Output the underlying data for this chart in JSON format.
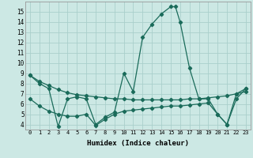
{
  "xlabel": "Humidex (Indice chaleur)",
  "bg_color": "#cce8e4",
  "grid_color": "#aacfcb",
  "line_color": "#1a6b5a",
  "xlim": [
    -0.5,
    23.5
  ],
  "ylim": [
    3.5,
    16.0
  ],
  "yticks": [
    4,
    5,
    6,
    7,
    8,
    9,
    10,
    11,
    12,
    13,
    14,
    15
  ],
  "xticks": [
    0,
    1,
    2,
    3,
    4,
    5,
    6,
    7,
    8,
    9,
    10,
    11,
    12,
    13,
    14,
    15,
    16,
    17,
    18,
    19,
    20,
    21,
    22,
    23
  ],
  "line1_x": [
    0,
    1,
    2,
    3,
    4,
    5,
    6,
    7,
    8,
    9,
    10,
    11,
    12,
    13,
    14,
    15,
    15.5,
    16,
    17,
    18,
    19,
    20,
    21,
    22,
    23
  ],
  "line1_y": [
    8.8,
    8.0,
    7.5,
    3.8,
    6.5,
    6.7,
    6.5,
    4.0,
    4.7,
    5.2,
    9.0,
    7.2,
    12.5,
    13.8,
    14.8,
    15.5,
    15.5,
    14.0,
    9.5,
    6.5,
    6.5,
    5.0,
    4.0,
    7.0,
    7.5
  ],
  "line2_x": [
    0,
    1,
    2,
    3,
    4,
    5,
    6,
    7,
    8,
    9,
    10,
    11,
    12,
    13,
    14,
    15,
    16,
    17,
    18,
    19,
    20,
    21,
    22,
    23
  ],
  "line2_y": [
    8.8,
    8.2,
    7.8,
    7.4,
    7.1,
    6.9,
    6.8,
    6.7,
    6.6,
    6.5,
    6.5,
    6.4,
    6.4,
    6.4,
    6.4,
    6.4,
    6.4,
    6.5,
    6.5,
    6.6,
    6.7,
    6.8,
    7.0,
    7.2
  ],
  "line3_x": [
    0,
    1,
    2,
    3,
    4,
    5,
    6,
    7,
    8,
    9,
    10,
    11,
    12,
    13,
    14,
    15,
    16,
    17,
    18,
    19,
    20,
    21,
    22,
    23
  ],
  "line3_y": [
    6.5,
    5.8,
    5.3,
    5.0,
    4.8,
    4.8,
    5.0,
    3.9,
    4.5,
    5.0,
    5.3,
    5.4,
    5.5,
    5.6,
    5.7,
    5.8,
    5.8,
    5.9,
    6.0,
    6.1,
    5.0,
    4.0,
    6.5,
    7.5
  ]
}
